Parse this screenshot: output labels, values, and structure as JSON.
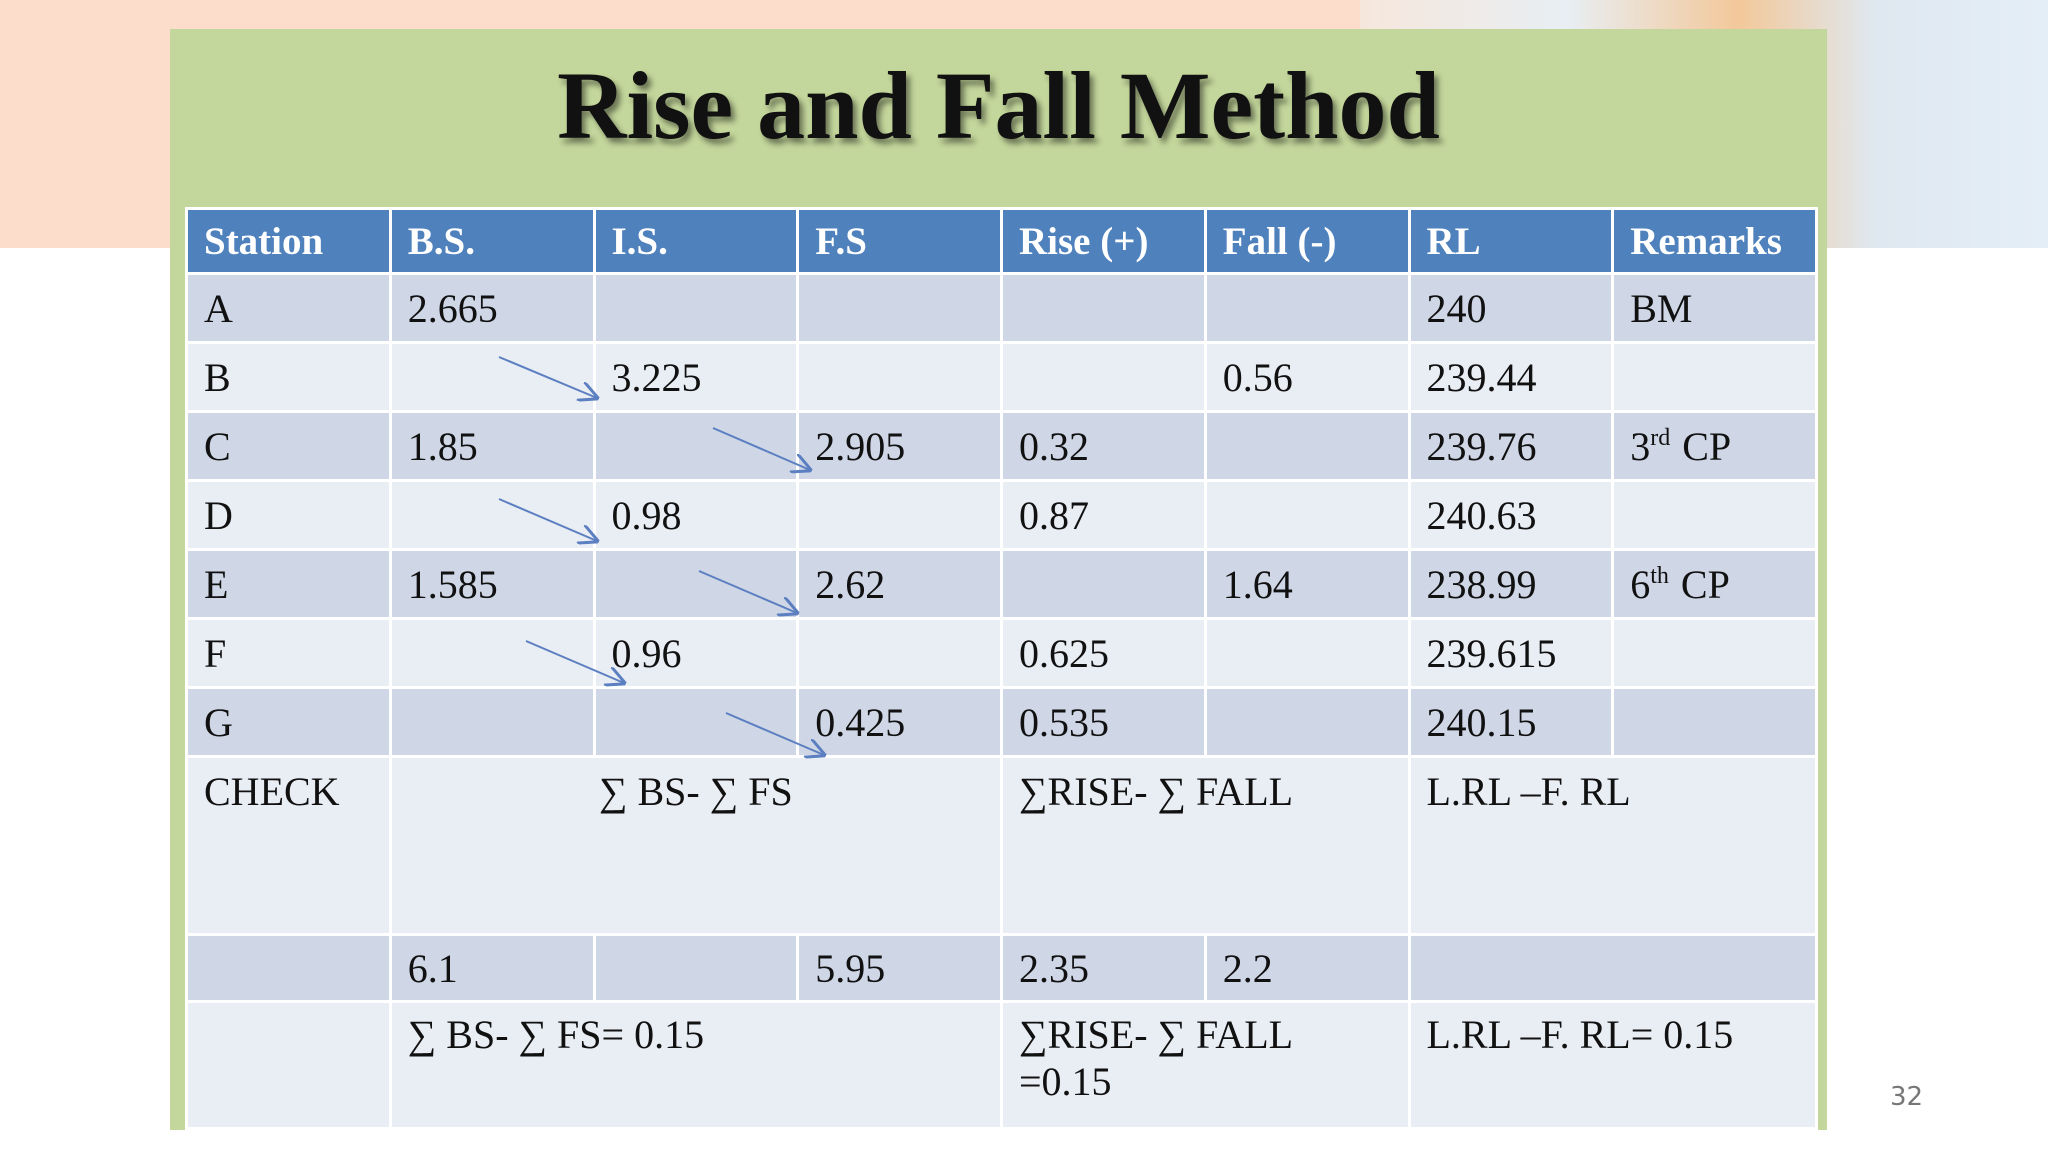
{
  "slide": {
    "title": "Rise and Fall Method",
    "page_number": "32"
  },
  "table": {
    "headers": [
      "Station",
      "B.S.",
      "I.S.",
      "F.S",
      "Rise (+)",
      "Fall (-)",
      "RL",
      "Remarks"
    ],
    "rows": [
      [
        "A",
        "2.665",
        null,
        null,
        null,
        null,
        "240",
        "BM"
      ],
      [
        "B",
        null,
        "3.225",
        null,
        null,
        "0.56",
        "239.44",
        null
      ],
      [
        "C",
        "1.85",
        null,
        "2.905",
        "0.32",
        null,
        "239.76",
        {
          "num": "3",
          "sup": "rd",
          "text": "CP"
        }
      ],
      [
        "D",
        null,
        "0.98",
        null,
        "0.87",
        null,
        "240.63",
        null
      ],
      [
        "E",
        "1.585",
        null,
        "2.62",
        null,
        "1.64",
        "238.99",
        {
          "num": "6",
          "sup": "th",
          "text": "CP"
        }
      ],
      [
        "F",
        null,
        "0.96",
        null,
        "0.625",
        null,
        "239.615",
        null
      ],
      [
        "G",
        null,
        null,
        "0.425",
        "0.535",
        null,
        "240.15",
        null
      ]
    ],
    "check": {
      "label": "CHECK",
      "bs_fs": "∑ BS- ∑ FS",
      "rise_fall": "∑RISE- ∑ FALL",
      "rl": "L.RL –F. RL"
    },
    "totals": [
      null,
      "6.1",
      null,
      "5.95",
      "2.35",
      "2.2"
    ],
    "results": {
      "bs_fs": "∑ BS- ∑ FS= 0.15",
      "rise_fall": [
        "∑RISE- ∑ FALL",
        "=0.15"
      ],
      "rl": "L.RL –F. RL= 0.15"
    }
  }
}
